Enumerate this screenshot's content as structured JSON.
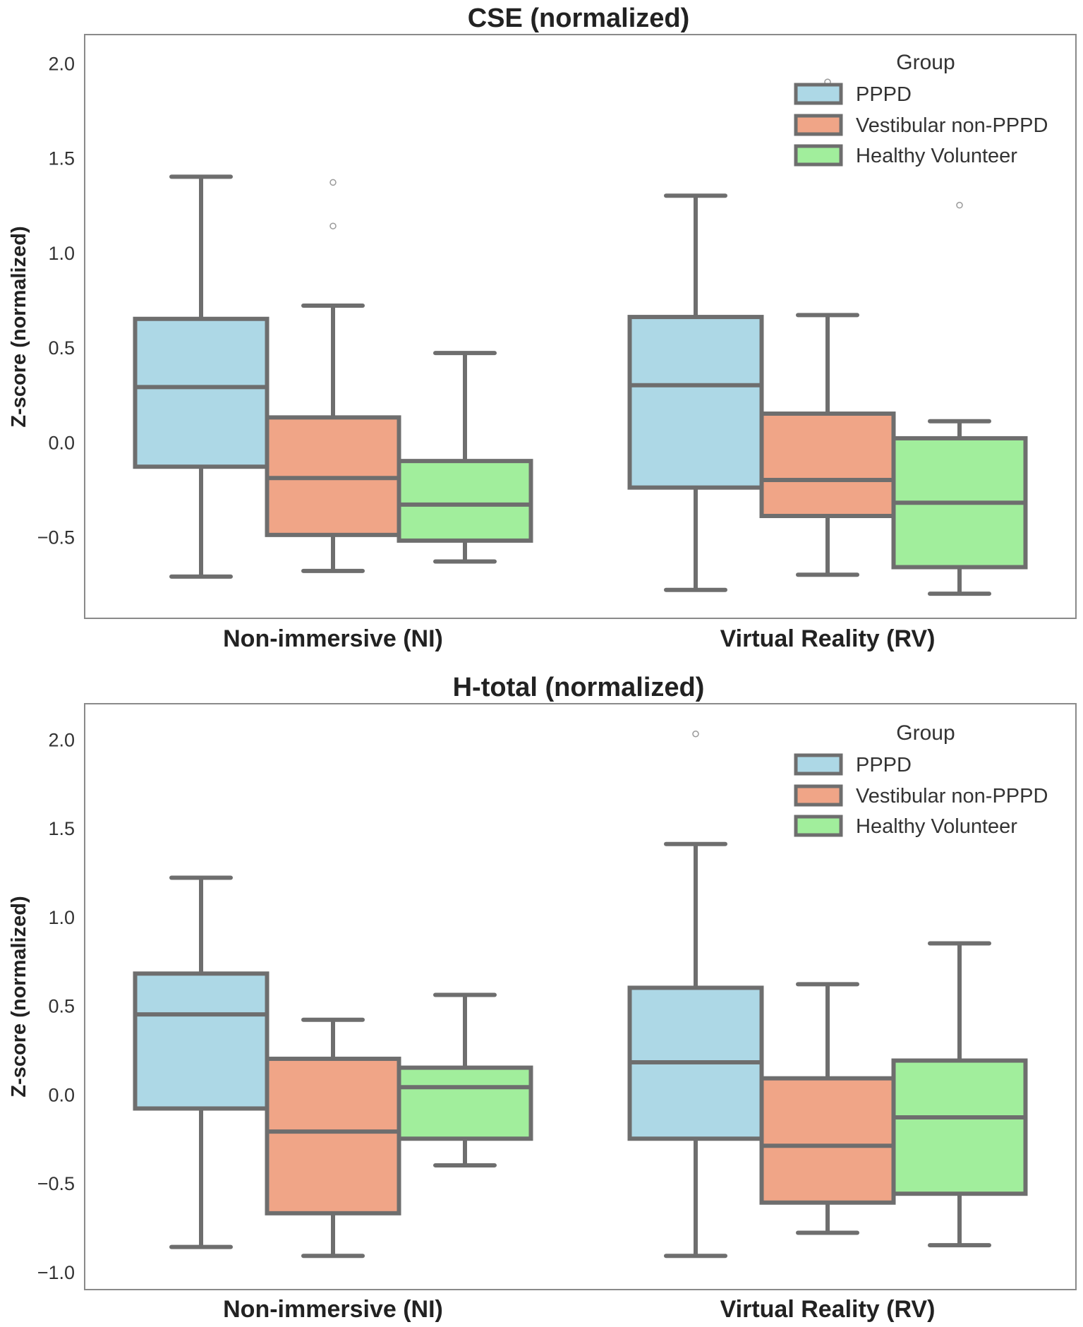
{
  "chart_data": [
    {
      "type": "box",
      "title": "CSE (normalized)",
      "ylabel": "Z-score (normalized)",
      "xlabel": "",
      "ylim": [
        -0.93,
        2.15
      ],
      "yticks": [
        -0.5,
        0.0,
        0.5,
        1.0,
        1.5,
        2.0
      ],
      "ytick_labels": [
        "−0.5",
        "0.0",
        "0.5",
        "1.0",
        "1.5",
        "2.0"
      ],
      "categories": [
        "Non-immersive (NI)",
        "Virtual Reality (RV)"
      ],
      "legend": {
        "title": "Group",
        "position": "top-right",
        "labels": [
          "PPPD",
          "Vestibular non-PPPD",
          "Healthy Volunteer"
        ]
      },
      "colors": [
        "#add8e6",
        "#f0a587",
        "#a1ee9c"
      ],
      "series": [
        {
          "name": "PPPD",
          "boxes": [
            {
              "whislo": -0.71,
              "q1": -0.13,
              "med": 0.29,
              "q3": 0.65,
              "whishi": 1.4,
              "fliers": []
            },
            {
              "whislo": -0.78,
              "q1": -0.24,
              "med": 0.3,
              "q3": 0.66,
              "whishi": 1.3,
              "fliers": []
            }
          ]
        },
        {
          "name": "Vestibular non-PPPD",
          "boxes": [
            {
              "whislo": -0.68,
              "q1": -0.49,
              "med": -0.19,
              "q3": 0.13,
              "whishi": 0.72,
              "fliers": [
                1.37,
                1.14
              ]
            },
            {
              "whislo": -0.7,
              "q1": -0.39,
              "med": -0.2,
              "q3": 0.15,
              "whishi": 0.67,
              "fliers": [
                1.9
              ]
            }
          ]
        },
        {
          "name": "Healthy Volunteer",
          "boxes": [
            {
              "whislo": -0.63,
              "q1": -0.52,
              "med": -0.33,
              "q3": -0.1,
              "whishi": 0.47,
              "fliers": []
            },
            {
              "whislo": -0.8,
              "q1": -0.66,
              "med": -0.32,
              "q3": 0.02,
              "whishi": 0.11,
              "fliers": [
                1.25
              ]
            }
          ]
        }
      ]
    },
    {
      "type": "box",
      "title": "H-total (normalized)",
      "ylabel": "Z-score (normalized)",
      "xlabel": "",
      "ylim": [
        -1.1,
        2.2
      ],
      "yticks": [
        -1.0,
        -0.5,
        0.0,
        0.5,
        1.0,
        1.5,
        2.0
      ],
      "ytick_labels": [
        "−1.0",
        "−0.5",
        "0.0",
        "0.5",
        "1.0",
        "1.5",
        "2.0"
      ],
      "categories": [
        "Non-immersive (NI)",
        "Virtual Reality (RV)"
      ],
      "legend": {
        "title": "Group",
        "position": "top-right",
        "labels": [
          "PPPD",
          "Vestibular non-PPPD",
          "Healthy Volunteer"
        ]
      },
      "colors": [
        "#add8e6",
        "#f0a587",
        "#a1ee9c"
      ],
      "series": [
        {
          "name": "PPPD",
          "boxes": [
            {
              "whislo": -0.86,
              "q1": -0.08,
              "med": 0.45,
              "q3": 0.68,
              "whishi": 1.22,
              "fliers": []
            },
            {
              "whislo": -0.91,
              "q1": -0.25,
              "med": 0.18,
              "q3": 0.6,
              "whishi": 1.41,
              "fliers": [
                2.03
              ]
            }
          ]
        },
        {
          "name": "Vestibular non-PPPD",
          "boxes": [
            {
              "whislo": -0.91,
              "q1": -0.67,
              "med": -0.21,
              "q3": 0.2,
              "whishi": 0.42,
              "fliers": []
            },
            {
              "whislo": -0.78,
              "q1": -0.61,
              "med": -0.29,
              "q3": 0.09,
              "whishi": 0.62,
              "fliers": []
            }
          ]
        },
        {
          "name": "Healthy Volunteer",
          "boxes": [
            {
              "whislo": -0.4,
              "q1": -0.25,
              "med": 0.04,
              "q3": 0.15,
              "whishi": 0.56,
              "fliers": []
            },
            {
              "whislo": -0.85,
              "q1": -0.56,
              "med": -0.13,
              "q3": 0.19,
              "whishi": 0.85,
              "fliers": []
            }
          ]
        }
      ]
    }
  ]
}
